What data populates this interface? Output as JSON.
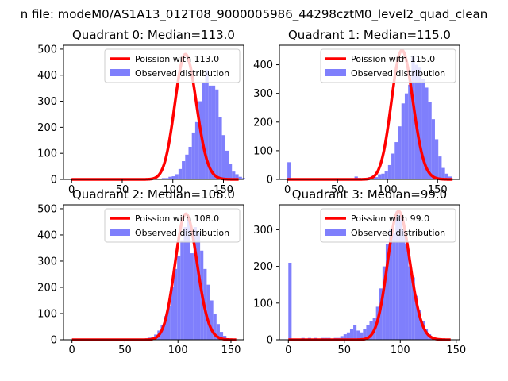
{
  "suptitle": "n file: modeM0/AS1A13_012T08_9000005986_44298cztM0_level2_quad_clean",
  "chart_data": [
    {
      "type": "bar",
      "title": "Quadrant 0: Median=113.0",
      "xlim": [
        -8,
        170
      ],
      "ylim": [
        0,
        515
      ],
      "xticks": [
        0,
        50,
        100,
        150
      ],
      "yticks": [
        0,
        100,
        200,
        300,
        400,
        500
      ],
      "legend_loc": "upper right",
      "legend": [
        "Poission with 113.0",
        "Observed distribution"
      ],
      "poisson_mean": 113.0,
      "poisson_peak": 480,
      "poisson_range": [
        0,
        165
      ],
      "grid": false,
      "hist": {
        "bin_start": 0,
        "bin_width": 3.3,
        "counts": [
          0,
          0,
          0,
          0,
          0,
          0,
          0,
          0,
          0,
          0,
          0,
          0,
          0,
          0,
          0,
          0,
          0,
          0,
          0,
          0,
          0,
          0,
          0,
          0,
          0,
          3,
          3,
          5,
          5,
          10,
          12,
          20,
          40,
          70,
          95,
          125,
          180,
          220,
          300,
          370,
          420,
          360,
          360,
          345,
          240,
          170,
          110,
          60,
          30,
          20,
          10,
          5,
          0
        ]
      }
    },
    {
      "type": "bar",
      "title": "Quadrant 1: Median=115.0",
      "xlim": [
        -8,
        172
      ],
      "ylim": [
        0,
        468
      ],
      "xticks": [
        0,
        50,
        100,
        150
      ],
      "yticks": [
        0,
        100,
        200,
        300,
        400
      ],
      "legend_loc": "upper right",
      "legend": [
        "Poission with 115.0",
        "Observed distribution"
      ],
      "poisson_mean": 115.0,
      "poisson_peak": 450,
      "poisson_range": [
        0,
        165
      ],
      "grid": false,
      "hist": {
        "bin_start": 0,
        "bin_width": 3.35,
        "counts": [
          60,
          0,
          0,
          0,
          0,
          0,
          0,
          0,
          0,
          0,
          0,
          0,
          0,
          0,
          0,
          0,
          0,
          0,
          0,
          0,
          10,
          5,
          0,
          5,
          8,
          12,
          8,
          18,
          20,
          30,
          50,
          90,
          130,
          185,
          265,
          300,
          330,
          430,
          400,
          390,
          350,
          320,
          270,
          210,
          140,
          80,
          40,
          20,
          10,
          0,
          0
        ]
      }
    },
    {
      "type": "bar",
      "title": "Quadrant 2: Median=108.0",
      "xlim": [
        -8,
        162
      ],
      "ylim": [
        0,
        515
      ],
      "xticks": [
        0,
        50,
        100,
        150
      ],
      "yticks": [
        0,
        100,
        200,
        300,
        400,
        500
      ],
      "legend_loc": "upper right",
      "legend": [
        "Poission with 108.0",
        "Observed distribution"
      ],
      "poisson_mean": 108.0,
      "poisson_peak": 480,
      "poisson_range": [
        0,
        155
      ],
      "grid": false,
      "hist": {
        "bin_start": 0,
        "bin_width": 3.1,
        "counts": [
          0,
          0,
          0,
          0,
          0,
          0,
          0,
          0,
          0,
          0,
          0,
          0,
          0,
          0,
          0,
          0,
          0,
          0,
          0,
          0,
          0,
          3,
          5,
          8,
          10,
          20,
          35,
          55,
          90,
          130,
          200,
          270,
          320,
          380,
          430,
          470,
          330,
          430,
          410,
          340,
          270,
          210,
          150,
          100,
          60,
          30,
          15,
          5,
          0,
          0
        ]
      }
    },
    {
      "type": "bar",
      "title": "Quadrant 3: Median=99.0",
      "xlim": [
        -8,
        153
      ],
      "ylim": [
        0,
        368
      ],
      "xticks": [
        0,
        50,
        100,
        150
      ],
      "yticks": [
        0,
        100,
        200,
        300
      ],
      "legend_loc": "upper right",
      "legend": [
        "Poission with 99.0",
        "Observed distribution"
      ],
      "poisson_mean": 99.0,
      "poisson_peak": 350,
      "poisson_range": [
        0,
        145
      ],
      "grid": false,
      "hist": {
        "bin_start": 0,
        "bin_width": 2.9,
        "counts": [
          210,
          0,
          0,
          0,
          5,
          0,
          5,
          0,
          5,
          0,
          5,
          5,
          5,
          3,
          5,
          5,
          10,
          15,
          20,
          30,
          40,
          25,
          20,
          30,
          40,
          50,
          60,
          90,
          140,
          200,
          260,
          300,
          290,
          350,
          340,
          300,
          260,
          200,
          170,
          120,
          80,
          50,
          30,
          15,
          5,
          0
        ]
      }
    }
  ]
}
